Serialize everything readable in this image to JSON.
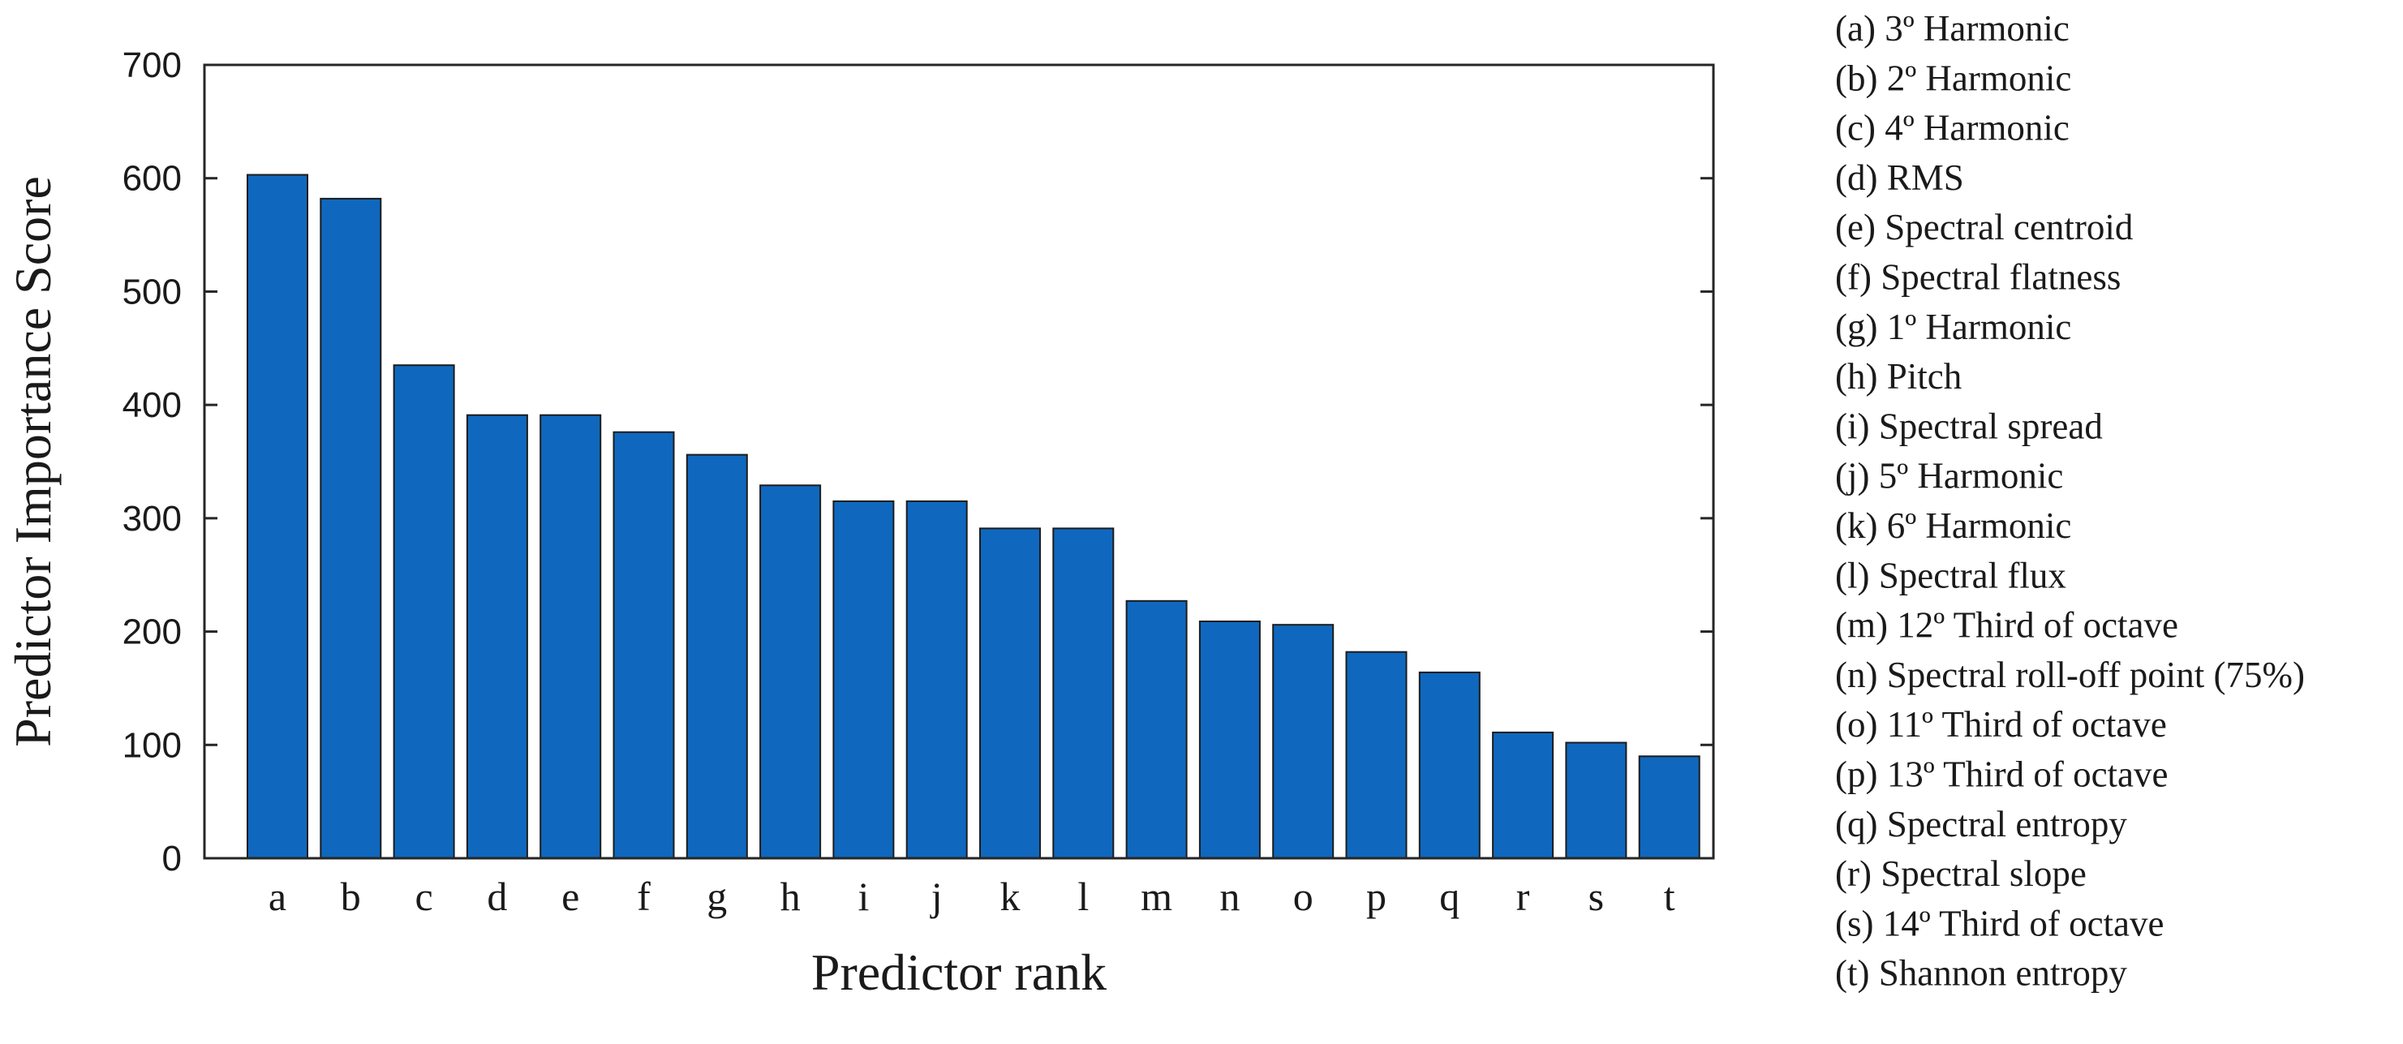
{
  "chart_data": {
    "type": "bar",
    "categories": [
      "a",
      "b",
      "c",
      "d",
      "e",
      "f",
      "g",
      "h",
      "i",
      "j",
      "k",
      "l",
      "m",
      "n",
      "o",
      "p",
      "q",
      "r",
      "s",
      "t"
    ],
    "values": [
      603,
      582,
      435,
      391,
      391,
      376,
      356,
      329,
      315,
      315,
      291,
      291,
      227,
      209,
      206,
      182,
      164,
      111,
      102,
      90
    ],
    "title": "",
    "xlabel": "Predictor rank",
    "ylabel": "Predictor Importance Score",
    "ylim": [
      0,
      700
    ],
    "yticks": [
      "0",
      "100",
      "200",
      "300",
      "400",
      "500",
      "600",
      "700"
    ],
    "grid": false,
    "bar_color": "#0f68be",
    "legend_placement": "right",
    "legend": [
      "(a) 3º Harmonic",
      "(b) 2º Harmonic",
      "(c) 4º Harmonic",
      "(d) RMS",
      "(e) Spectral centroid",
      "(f) Spectral flatness",
      "(g) 1º Harmonic",
      "(h) Pitch",
      "(i) Spectral spread",
      "(j) 5º Harmonic",
      "(k) 6º Harmonic",
      "(l) Spectral flux",
      "(m) 12º Third of octave",
      "(n) Spectral roll-off point (75%)",
      "(o) 11º Third of octave",
      "(p) 13º Third of octave",
      "(q) Spectral entropy",
      "(r) Spectral slope",
      "(s) 14º Third of octave",
      "(t) Shannon entropy"
    ]
  }
}
